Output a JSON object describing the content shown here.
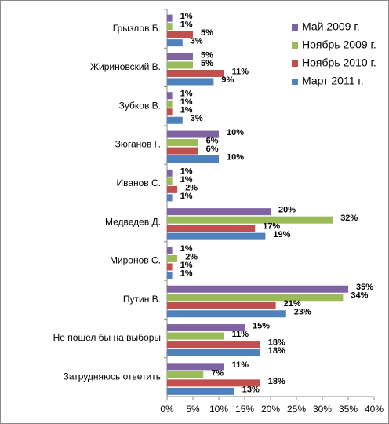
{
  "chart_data": {
    "type": "bar",
    "orientation": "horizontal",
    "categories": [
      "Грызлов Б.",
      "Жириновский В.",
      "Зубков В.",
      "Зюганов Г.",
      "Иванов С.",
      "Медведев Д.",
      "Миронов С.",
      "Путин В.",
      "Не пошел бы на выборы",
      "Затрудняюсь ответить"
    ],
    "series": [
      {
        "name": "Май 2009 г.",
        "color": "#8064a2",
        "values": [
          1,
          5,
          1,
          10,
          1,
          20,
          1,
          35,
          15,
          11
        ],
        "value_labels": [
          "1%",
          "5%",
          "1%",
          "10%",
          "1%",
          "20%",
          "1%",
          "35%",
          "15%",
          "11%"
        ]
      },
      {
        "name": "Ноябрь 2009 г.",
        "color": "#9bbb59",
        "values": [
          1,
          5,
          1,
          6,
          1,
          32,
          2,
          34,
          11,
          7
        ],
        "value_labels": [
          "1%",
          "5%",
          "1%",
          "6%",
          "1%",
          "32%",
          "2%",
          "34%",
          "11%",
          "7%"
        ]
      },
      {
        "name": "Ноябрь 2010 г.",
        "color": "#c0504d",
        "values": [
          5,
          11,
          1,
          6,
          2,
          17,
          1,
          21,
          18,
          18
        ],
        "value_labels": [
          "5%",
          "11%",
          "1%",
          "6%",
          "2%",
          "17%",
          "1%",
          "21%",
          "18%",
          "18%"
        ]
      },
      {
        "name": "Март 2011 г.",
        "color": "#4f81bd",
        "values": [
          3,
          9,
          3,
          10,
          1,
          19,
          1,
          23,
          18,
          13
        ],
        "value_labels": [
          "3%",
          "9%",
          "3%",
          "10%",
          "1%",
          "19%",
          "1%",
          "23%",
          "18%",
          "13%"
        ]
      }
    ],
    "xlim": [
      0,
      40
    ],
    "xticks": [
      {
        "value": 0,
        "label": "0%"
      },
      {
        "value": 5,
        "label": "5%"
      },
      {
        "value": 10,
        "label": "10%"
      },
      {
        "value": 15,
        "label": "15%"
      },
      {
        "value": 20,
        "label": "20%"
      },
      {
        "value": 25,
        "label": "25%"
      },
      {
        "value": 30,
        "label": "30%"
      },
      {
        "value": 35,
        "label": "35%"
      },
      {
        "value": 40,
        "label": "40%"
      }
    ],
    "grid": false,
    "legend": "top-right"
  }
}
